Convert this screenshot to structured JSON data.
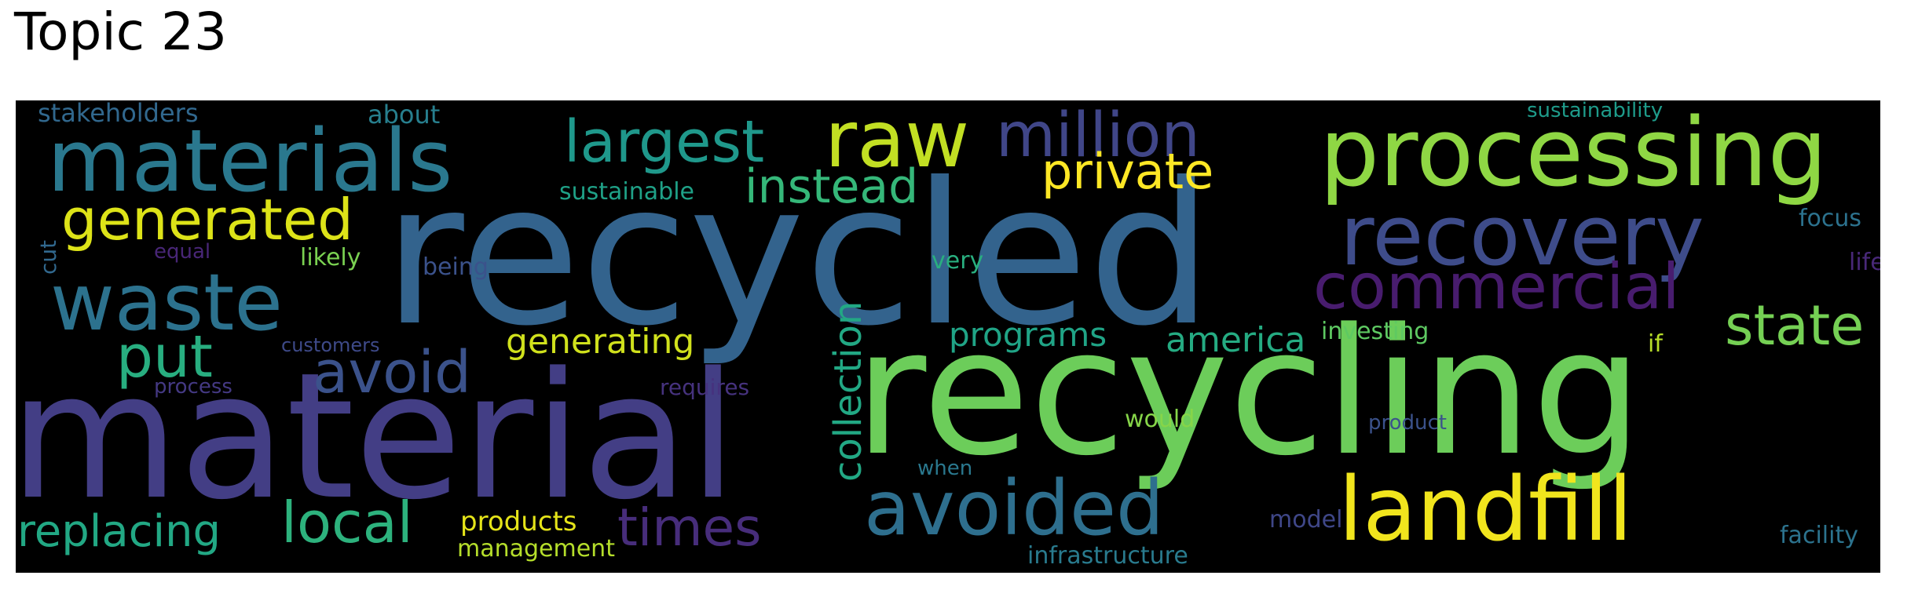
{
  "title": "Topic 23",
  "words": {
    "recycled": {
      "text": "recycled",
      "color": "#33638d"
    },
    "material": {
      "text": "material",
      "color": "#433e85"
    },
    "recycling": {
      "text": "recycling",
      "color": "#6ccd5a"
    },
    "materials": {
      "text": "materials",
      "color": "#2a788e"
    },
    "processing": {
      "text": "processing",
      "color": "#8fd744"
    },
    "waste": {
      "text": "waste",
      "color": "#2c728e"
    },
    "raw": {
      "text": "raw",
      "color": "#c2df23"
    },
    "landfill": {
      "text": "landfill",
      "color": "#f1e51d"
    },
    "recovery": {
      "text": "recovery",
      "color": "#3e4c8a"
    },
    "million": {
      "text": "million",
      "color": "#404688"
    },
    "avoided": {
      "text": "avoided",
      "color": "#2e6f8e"
    },
    "largest": {
      "text": "largest",
      "color": "#1f988b"
    },
    "generated": {
      "text": "generated",
      "color": "#dde318"
    },
    "commercial": {
      "text": "commercial",
      "color": "#481c6e"
    },
    "local": {
      "text": "local",
      "color": "#2db27d"
    },
    "times": {
      "text": "times",
      "color": "#472d7b"
    },
    "state": {
      "text": "state",
      "color": "#75d054"
    },
    "put": {
      "text": "put",
      "color": "#28ae80"
    },
    "avoid": {
      "text": "avoid",
      "color": "#3b528b"
    },
    "private": {
      "text": "private",
      "color": "#fde725"
    },
    "instead": {
      "text": "instead",
      "color": "#35b779"
    },
    "replacing": {
      "text": "replacing",
      "color": "#22a884"
    },
    "collection": {
      "text": "collection",
      "color": "#22a884"
    },
    "generating": {
      "text": "generating",
      "color": "#d0e11c"
    },
    "america": {
      "text": "america",
      "color": "#25ab82"
    },
    "programs": {
      "text": "programs",
      "color": "#20a486"
    },
    "products": {
      "text": "products",
      "color": "#e5e419"
    },
    "sustainable": {
      "text": "sustainable",
      "color": "#1fa187"
    },
    "management": {
      "text": "management",
      "color": "#b5de2b"
    },
    "stakeholders": {
      "text": "stakeholders",
      "color": "#31688e"
    },
    "about": {
      "text": "about",
      "color": "#277f8e"
    },
    "sustainability": {
      "text": "sustainability",
      "color": "#1e9b8a"
    },
    "focus": {
      "text": "focus",
      "color": "#2c728e"
    },
    "life": {
      "text": "life",
      "color": "#482878"
    },
    "infrastructure": {
      "text": "infrastructure",
      "color": "#297b8e"
    },
    "facility": {
      "text": "facility",
      "color": "#2c738e"
    },
    "model": {
      "text": "model",
      "color": "#3f4788"
    },
    "investing": {
      "text": "investing",
      "color": "#5ec962"
    },
    "would": {
      "text": "would",
      "color": "#86d549"
    },
    "if": {
      "text": "if",
      "color": "#b8de29"
    },
    "product": {
      "text": "product",
      "color": "#3b528b"
    },
    "requires": {
      "text": "requires",
      "color": "#46327e"
    },
    "when": {
      "text": "when",
      "color": "#2a788e"
    },
    "very": {
      "text": "very",
      "color": "#29af7f"
    },
    "being": {
      "text": "being",
      "color": "#3b528b"
    },
    "likely": {
      "text": "likely",
      "color": "#7ad151"
    },
    "equal": {
      "text": "equal",
      "color": "#482677"
    },
    "customers": {
      "text": "customers",
      "color": "#3e4a89"
    },
    "process": {
      "text": "process",
      "color": "#443983"
    },
    "cut": {
      "text": "cut",
      "color": "#31688e"
    }
  }
}
